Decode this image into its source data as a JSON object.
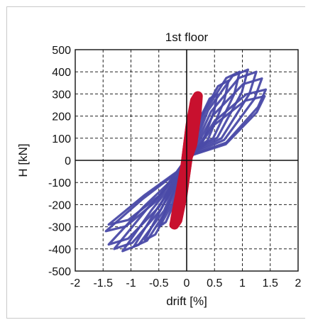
{
  "chart_data": {
    "type": "line",
    "title": "1st floor",
    "xlabel": "drift [%]",
    "ylabel": "H [kN]",
    "xlim": [
      -2,
      2
    ],
    "ylim": [
      -500,
      500
    ],
    "xticks": [
      -2,
      -1.5,
      -1,
      -0.5,
      0,
      0.5,
      1,
      1.5,
      2
    ],
    "xtick_labels": [
      "-2",
      "-1.5",
      "-1",
      "-0.5",
      "0",
      "0.5",
      "1",
      "1.5",
      "2"
    ],
    "yticks": [
      500,
      400,
      300,
      200,
      100,
      0,
      -100,
      -200,
      -300,
      -400,
      -500
    ],
    "ytick_labels": [
      "500",
      "400",
      "300",
      "200",
      "100",
      "0",
      "-100",
      "-200",
      "-300",
      "-400",
      "-500"
    ],
    "grid": true,
    "grid_style": "dashed",
    "zero_lines": true,
    "series": [
      {
        "color": "#4a4aa8",
        "style": "hysteresis-loops",
        "loops": [
          {
            "xmax": 0.55,
            "ymax": 300,
            "xmin": -0.5,
            "ymin": -300
          },
          {
            "xmax": 0.75,
            "ymax": 360,
            "xmin": -0.75,
            "ymin": -360
          },
          {
            "xmax": 0.95,
            "ymax": 400,
            "xmin": -0.95,
            "ymin": -390
          },
          {
            "xmax": 1.1,
            "ymax": 410,
            "xmin": -1.15,
            "ymin": -410
          },
          {
            "xmax": 1.25,
            "ymax": 400,
            "xmin": -1.3,
            "ymin": -400
          },
          {
            "xmax": 1.35,
            "ymax": 370,
            "xmin": -1.4,
            "ymin": -380
          },
          {
            "xmax": 1.42,
            "ymax": 320,
            "xmin": -1.45,
            "ymin": -320
          },
          {
            "xmax": 1.4,
            "ymax": 290,
            "xmin": -1.4,
            "ymin": -290
          }
        ]
      },
      {
        "color": "#c8102e",
        "style": "hysteresis-loops",
        "loops": [
          {
            "xmax": 0.2,
            "ymax": 290,
            "xmin": -0.22,
            "ymin": -290
          },
          {
            "xmax": 0.18,
            "ymax": 260,
            "xmin": -0.2,
            "ymin": -260
          }
        ]
      }
    ]
  }
}
